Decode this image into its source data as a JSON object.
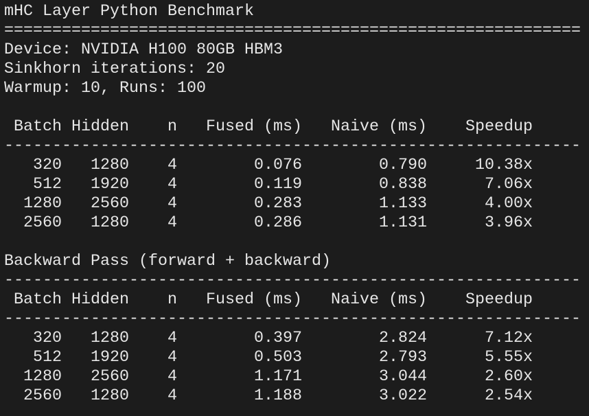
{
  "header": {
    "title": "mHC Layer Python Benchmark",
    "rule": "============================================================"
  },
  "info": [
    "Device: NVIDIA H100 80GB HBM3",
    "Sinkhorn iterations: 20",
    "Warmup: 10, Runs: 100"
  ],
  "forward": {
    "columns": [
      "Batch",
      "Hidden",
      "n",
      "Fused (ms)",
      "Naive (ms)",
      "Speedup"
    ],
    "rule": "------------------------------------------------------------",
    "rows": [
      [
        "320",
        "1280",
        "4",
        "0.076",
        "0.790",
        "10.38x"
      ],
      [
        "512",
        "1920",
        "4",
        "0.119",
        "0.838",
        "7.06x"
      ],
      [
        "1280",
        "2560",
        "4",
        "0.283",
        "1.133",
        "4.00x"
      ],
      [
        "2560",
        "1280",
        "4",
        "0.286",
        "1.131",
        "3.96x"
      ]
    ]
  },
  "backward": {
    "title": "Backward Pass (forward + backward)",
    "rule_top": "------------------------------------------------------------",
    "columns": [
      "Batch",
      "Hidden",
      "n",
      "Fused (ms)",
      "Naive (ms)",
      "Speedup"
    ],
    "rule": "------------------------------------------------------------",
    "rows": [
      [
        "320",
        "1280",
        "4",
        "0.397",
        "2.824",
        "7.12x"
      ],
      [
        "512",
        "1920",
        "4",
        "0.503",
        "2.793",
        "5.55x"
      ],
      [
        "1280",
        "2560",
        "4",
        "1.171",
        "3.044",
        "2.60x"
      ],
      [
        "2560",
        "1280",
        "4",
        "1.188",
        "3.022",
        "2.54x"
      ]
    ]
  }
}
